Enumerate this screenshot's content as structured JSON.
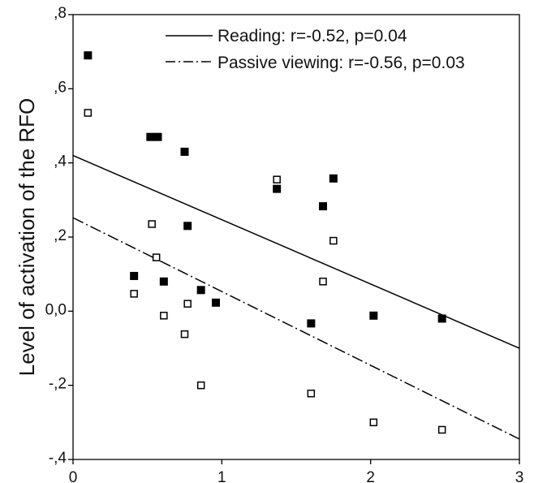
{
  "chart_data": {
    "type": "scatter",
    "ylabel": "Level of activation of the RFO",
    "xlabel": "",
    "xlim": [
      0,
      3
    ],
    "ylim": [
      -0.4,
      0.8
    ],
    "x_ticks": [
      0,
      1,
      2,
      3
    ],
    "x_tick_labels": [
      "0",
      "1",
      "2",
      "3"
    ],
    "y_ticks": [
      0.8,
      0.6,
      0.4,
      0.2,
      0.0,
      -0.2,
      -0.4
    ],
    "y_tick_labels": [
      ",8",
      ",6",
      ",4",
      ",2",
      "0,0",
      "-,2",
      "-,4"
    ],
    "grid": false,
    "legend_position": "top-right",
    "series": [
      {
        "name": "Reading: r=-0.52, p=0.04",
        "marker": "filled-square",
        "line_style": "solid",
        "color": "#000000",
        "points": [
          [
            0.1,
            0.69
          ],
          [
            0.52,
            0.47
          ],
          [
            0.57,
            0.47
          ],
          [
            0.75,
            0.43
          ],
          [
            0.77,
            0.23
          ],
          [
            0.41,
            0.095
          ],
          [
            0.61,
            0.08
          ],
          [
            0.86,
            0.057
          ],
          [
            0.96,
            0.023
          ],
          [
            1.37,
            0.33
          ],
          [
            1.68,
            0.283
          ],
          [
            1.75,
            0.358
          ],
          [
            1.6,
            -0.033
          ],
          [
            2.02,
            -0.012
          ],
          [
            2.48,
            -0.02
          ]
        ],
        "fit_line": [
          [
            0,
            0.42
          ],
          [
            3,
            -0.1
          ]
        ]
      },
      {
        "name": "Passive viewing: r=-0.56, p=0.03",
        "marker": "open-square",
        "line_style": "dash-dot",
        "color": "#000000",
        "points": [
          [
            0.1,
            0.535
          ],
          [
            0.53,
            0.235
          ],
          [
            0.56,
            0.145
          ],
          [
            0.41,
            0.047
          ],
          [
            0.61,
            -0.012
          ],
          [
            0.77,
            0.02
          ],
          [
            0.75,
            -0.062
          ],
          [
            0.86,
            -0.2
          ],
          [
            1.37,
            0.355
          ],
          [
            1.75,
            0.19
          ],
          [
            1.68,
            0.08
          ],
          [
            1.6,
            -0.222
          ],
          [
            2.02,
            -0.3
          ],
          [
            2.48,
            -0.32
          ]
        ],
        "fit_line": [
          [
            0,
            0.252
          ],
          [
            3,
            -0.345
          ]
        ]
      }
    ]
  }
}
